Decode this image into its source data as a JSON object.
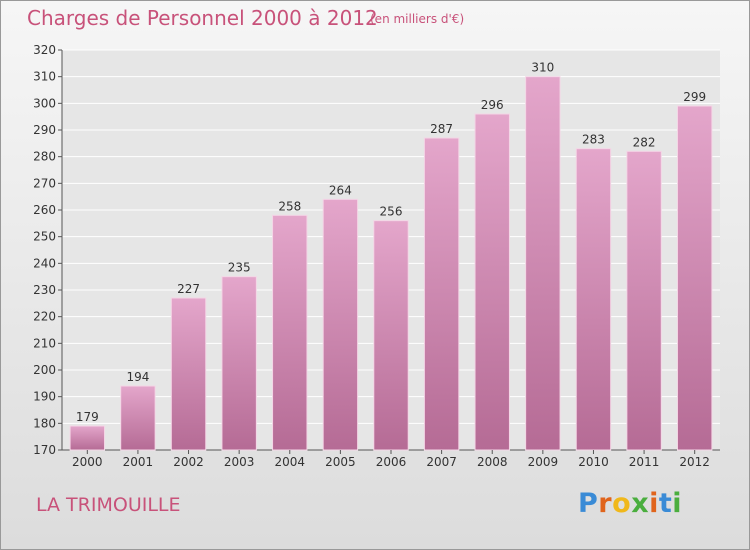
{
  "page": {
    "title": "Charges de Personnel 2000 à 2012",
    "unit": "(en milliers d'€)",
    "commune": "LA TRIMOUILLE",
    "brand": "Proxiti"
  },
  "chart_data": {
    "type": "bar",
    "title": "Charges de Personnel 2000 à 2012",
    "subtitle": "(en milliers d'€)",
    "categories": [
      "2000",
      "2001",
      "2002",
      "2003",
      "2004",
      "2005",
      "2006",
      "2007",
      "2008",
      "2009",
      "2010",
      "2011",
      "2012"
    ],
    "values": [
      179,
      194,
      227,
      235,
      258,
      264,
      256,
      287,
      296,
      310,
      283,
      282,
      299
    ],
    "ylim": [
      170,
      320
    ],
    "yticks": [
      170,
      180,
      190,
      200,
      210,
      220,
      230,
      240,
      250,
      260,
      270,
      280,
      290,
      300,
      310,
      320
    ],
    "grid": true,
    "bar_color": "#d98ab4"
  }
}
